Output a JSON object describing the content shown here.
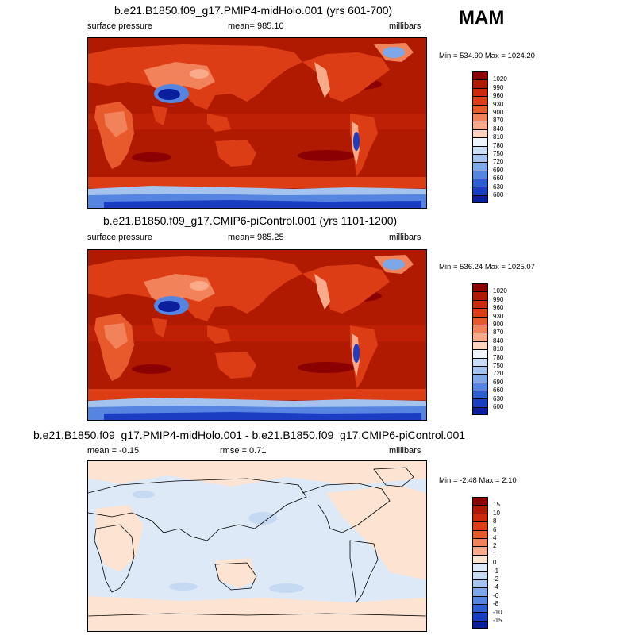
{
  "season": "MAM",
  "panels": [
    {
      "id": "p1",
      "title": "b.e21.B1850.f09_g17.PMIP4-midHolo.001 (yrs 601-700)",
      "left_label": "surface pressure",
      "mid_label": "mean= 985.10",
      "right_label": "millibars",
      "minmax": "Min = 534.90 Max = 1024.20",
      "kind": "field"
    },
    {
      "id": "p2",
      "title": "b.e21.B1850.f09_g17.CMIP6-piControl.001 (yrs 1101-1200)",
      "left_label": "surface pressure",
      "mid_label": "mean= 985.25",
      "right_label": "millibars",
      "minmax": "Min = 536.24 Max = 1025.07",
      "kind": "field"
    },
    {
      "id": "p3",
      "title": "b.e21.B1850.f09_g17.PMIP4-midHolo.001 - b.e21.B1850.f09_g17.CMIP6-piControl.001",
      "left_label": "mean =  -0.15",
      "mid_label": "rmse =   0.71",
      "right_label": "millibars",
      "minmax": "Min =  -2.48 Max =   2.10",
      "kind": "diff"
    }
  ],
  "colorbars": {
    "field": {
      "labels": [
        "1020",
        "990",
        "960",
        "930",
        "900",
        "870",
        "840",
        "810",
        "780",
        "750",
        "720",
        "690",
        "660",
        "630",
        "600"
      ],
      "colors": [
        "#8b0000",
        "#b01a00",
        "#cc2a0a",
        "#dd3d14",
        "#e85a2c",
        "#f2825a",
        "#f8aa8a",
        "#fcd3bd",
        "#eef4fb",
        "#c9dcf5",
        "#a4c3ef",
        "#7ea7e8",
        "#5585e0",
        "#2d5fd3",
        "#1a3dc2",
        "#0b1f9e"
      ]
    },
    "diff": {
      "labels": [
        "15",
        "10",
        "8",
        "6",
        "4",
        "2",
        "1",
        "0",
        "-1",
        "-2",
        "-4",
        "-6",
        "-8",
        "-10",
        "-15"
      ],
      "colors": [
        "#8b0000",
        "#b01a00",
        "#cc2a0a",
        "#dd3d14",
        "#e85a2c",
        "#f2825a",
        "#f8aa8a",
        "#fce3d2",
        "#dde9f7",
        "#c5d9f3",
        "#a4c3ef",
        "#7ea7e8",
        "#5585e0",
        "#2d5fd3",
        "#1a3dc2",
        "#0b1f9e"
      ]
    }
  },
  "colors": {
    "ocean_high": "#b01a00",
    "land_mid": "#dd3d14",
    "land_high_terrain": "#f2825a",
    "ice_low": "#1a3dc2",
    "diff_pos": "#fce3d2",
    "diff_neg": "#dde9f7",
    "diff_neg2": "#c5d9f3"
  }
}
